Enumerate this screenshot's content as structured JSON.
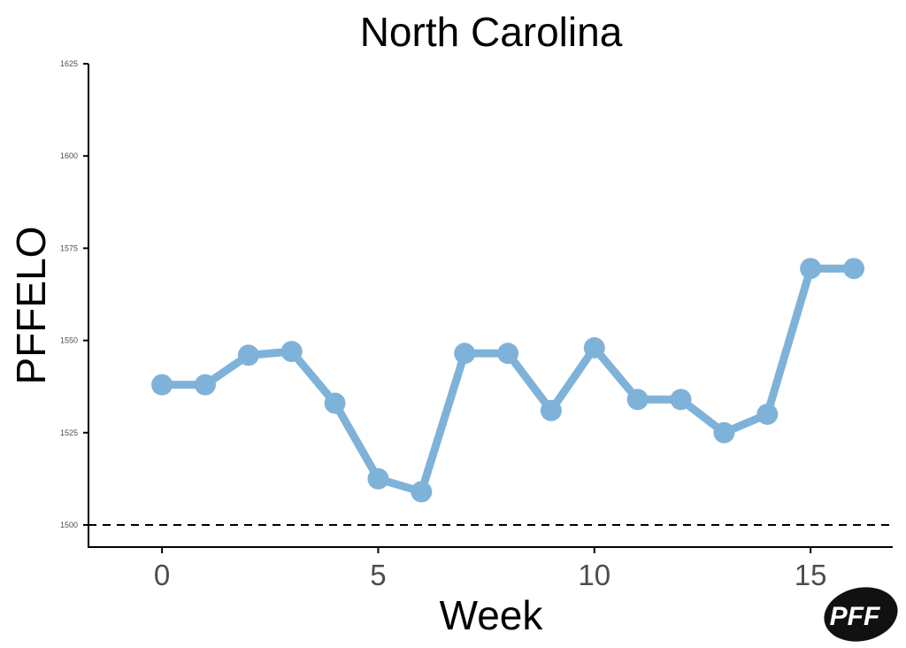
{
  "chart_data": {
    "type": "line",
    "title": "North Carolina",
    "xlabel": "Week",
    "ylabel": "PFFELO",
    "x": [
      0,
      1,
      2,
      3,
      4,
      5,
      6,
      7,
      8,
      9,
      10,
      11,
      12,
      13,
      14,
      15,
      16
    ],
    "series": [
      {
        "values": [
          1538,
          1538,
          1546,
          1547,
          1533,
          1512.5,
          1509,
          1546.5,
          1546.5,
          1531,
          1548,
          1534,
          1534,
          1525,
          1530,
          1569.5,
          1569.5
        ]
      }
    ],
    "xlim": [
      -1.7,
      16.9
    ],
    "ylim": [
      1494,
      1625
    ],
    "xticks": [
      0,
      5,
      10,
      15
    ],
    "yticks": [
      1500,
      1525,
      1550,
      1575,
      1600,
      1625
    ],
    "reference_line": {
      "y": 1500,
      "style": "dashed"
    },
    "line_color": "#7fb2d9",
    "grid": false,
    "legend": "none"
  },
  "logo": {
    "text": "PFF"
  }
}
